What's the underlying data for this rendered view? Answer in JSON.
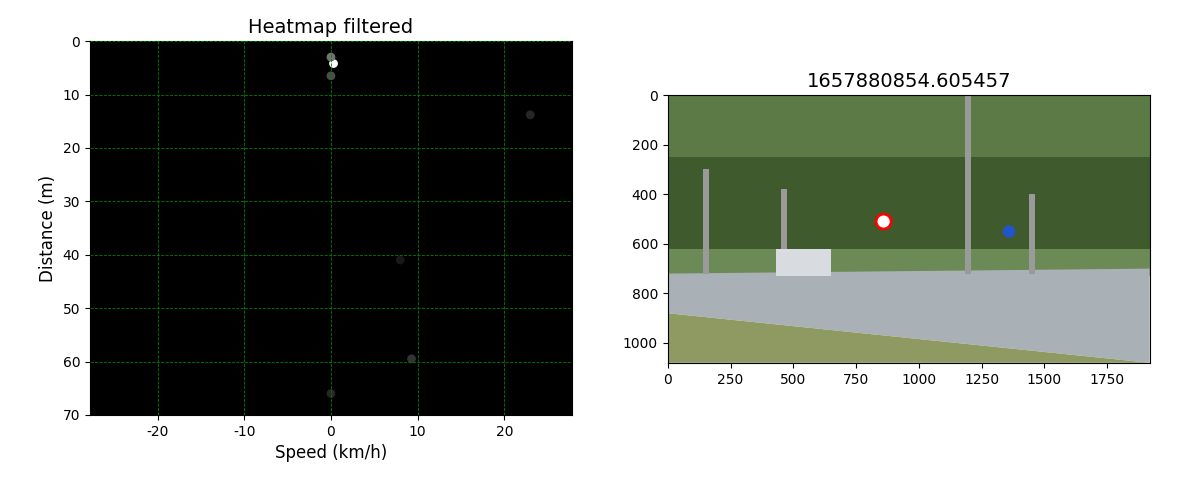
{
  "chart_data": [
    {
      "type": "heatmap",
      "title": "Heatmap filtered",
      "x_label": "Speed (km/h)",
      "y_label": "Distance (m)",
      "x": [
        0.3,
        0.0,
        0.0,
        23.0,
        9.3,
        0.0,
        8.0
      ],
      "y": [
        4.2,
        3.0,
        6.5,
        13.8,
        59.5,
        66.0,
        41.0
      ],
      "values": [
        1.0,
        0.45,
        0.3,
        0.15,
        0.2,
        0.15,
        0.1
      ],
      "color_range": [
        0,
        1
      ],
      "xlim": [
        -27.8,
        27.8
      ],
      "ylim": [
        70,
        0
      ],
      "xticks": [
        -20,
        -10,
        0,
        10,
        20
      ],
      "yticks": [
        0,
        10,
        20,
        30,
        40,
        50,
        60,
        70
      ],
      "grid": true
    },
    {
      "type": "image",
      "title": "1657880854.605457",
      "xlim": [
        0,
        1920
      ],
      "ylim": [
        1080,
        0
      ],
      "xticks": [
        0,
        250,
        500,
        750,
        1000,
        1250,
        1500,
        1750
      ],
      "yticks": [
        0,
        200,
        400,
        600,
        800,
        1000
      ]
    }
  ]
}
